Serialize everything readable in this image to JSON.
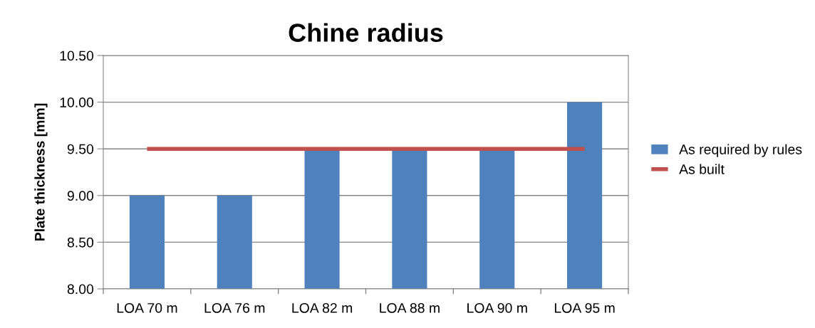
{
  "chart_data": {
    "type": "bar",
    "title": "Chine radius",
    "ylabel": "Plate thickness [mm]",
    "categories": [
      "LOA 70 m",
      "LOA 76 m",
      "LOA 82 m",
      "LOA 88 m",
      "LOA 90 m",
      "LOA 95 m"
    ],
    "series": [
      {
        "name": "As required by rules",
        "color": "#4f81bd",
        "values": [
          9.0,
          9.0,
          9.5,
          9.5,
          9.5,
          10.0
        ]
      },
      {
        "name": "As built",
        "type": "line",
        "color": "#c0504d",
        "values": [
          9.5,
          9.5,
          9.5,
          9.5,
          9.5,
          9.5
        ]
      }
    ],
    "ylim": [
      8.0,
      10.5
    ],
    "yticks": [
      {
        "value": 8.0,
        "label": "8.00"
      },
      {
        "value": 8.5,
        "label": "8.50"
      },
      {
        "value": 9.0,
        "label": "9.00"
      },
      {
        "value": 9.5,
        "label": "9.50"
      },
      {
        "value": 10.0,
        "label": "10.00"
      },
      {
        "value": 10.5,
        "label": "10.50"
      }
    ],
    "grid": "y",
    "legend": "right"
  }
}
